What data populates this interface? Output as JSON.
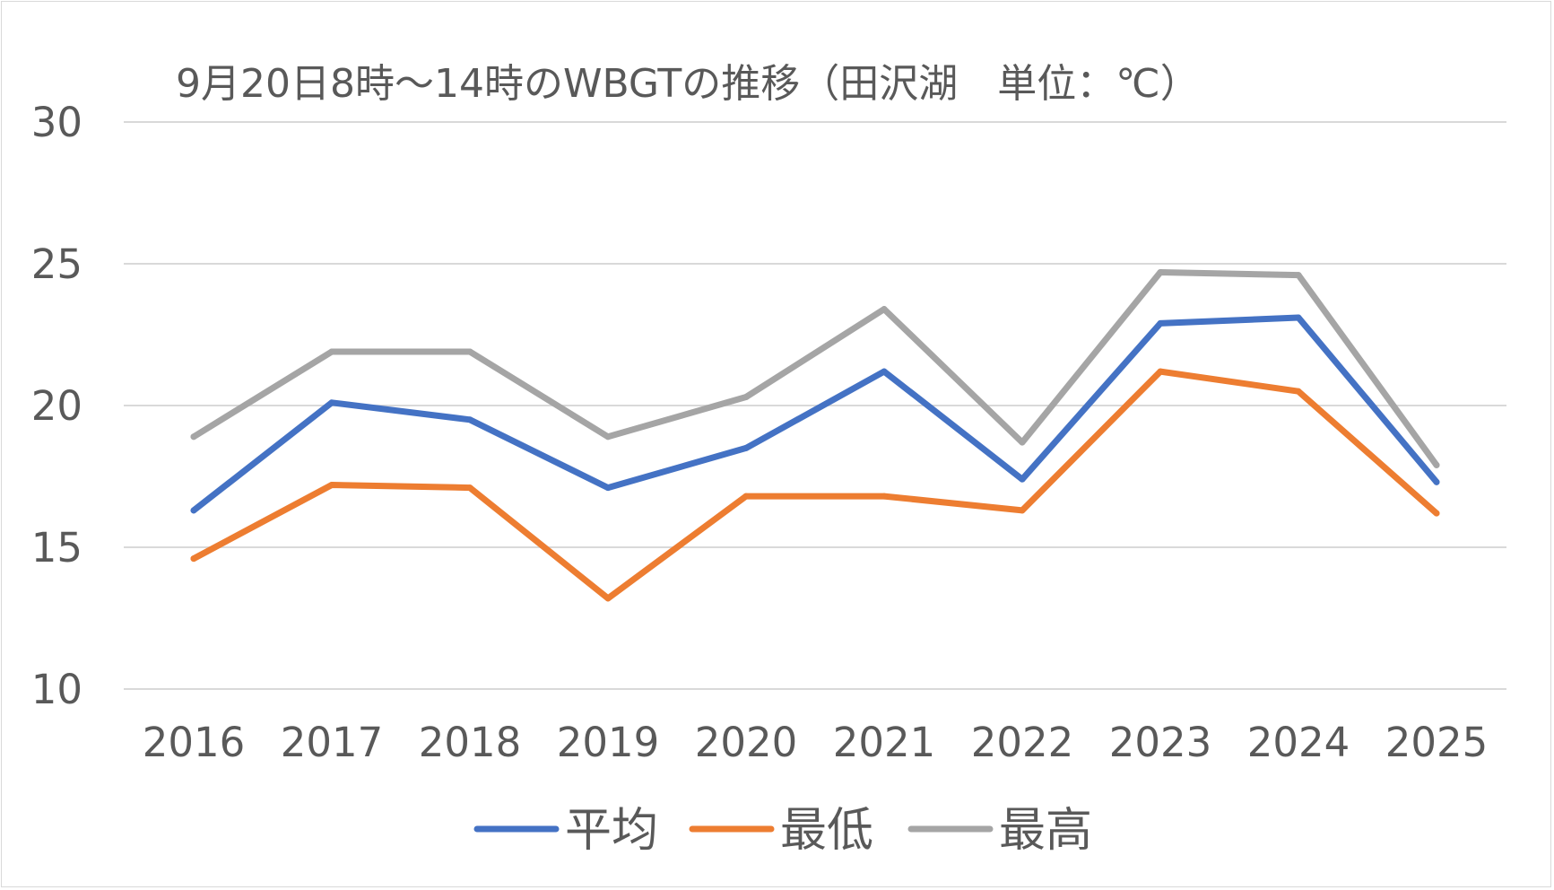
{
  "chart_data": {
    "type": "line",
    "title": "9月20日8時～14時のWBGTの推移（田沢湖　単位：℃）",
    "categories": [
      "2016",
      "2017",
      "2018",
      "2019",
      "2020",
      "2021",
      "2022",
      "2023",
      "2024",
      "2025"
    ],
    "ylim": [
      10,
      30
    ],
    "yticks": [
      10,
      15,
      20,
      25,
      30
    ],
    "grid": true,
    "legend_position": "bottom",
    "series": [
      {
        "name": "平均",
        "color": "#4472c4",
        "values": [
          16.3,
          20.1,
          19.5,
          17.1,
          18.5,
          21.2,
          17.4,
          22.9,
          23.1,
          17.3
        ]
      },
      {
        "name": "最低",
        "color": "#ed7d31",
        "values": [
          14.6,
          17.2,
          17.1,
          13.2,
          16.8,
          16.8,
          16.3,
          21.2,
          20.5,
          16.2
        ]
      },
      {
        "name": "最高",
        "color": "#a5a5a5",
        "values": [
          18.9,
          21.9,
          21.9,
          18.9,
          20.3,
          23.4,
          18.7,
          24.7,
          24.6,
          17.9
        ]
      }
    ]
  }
}
